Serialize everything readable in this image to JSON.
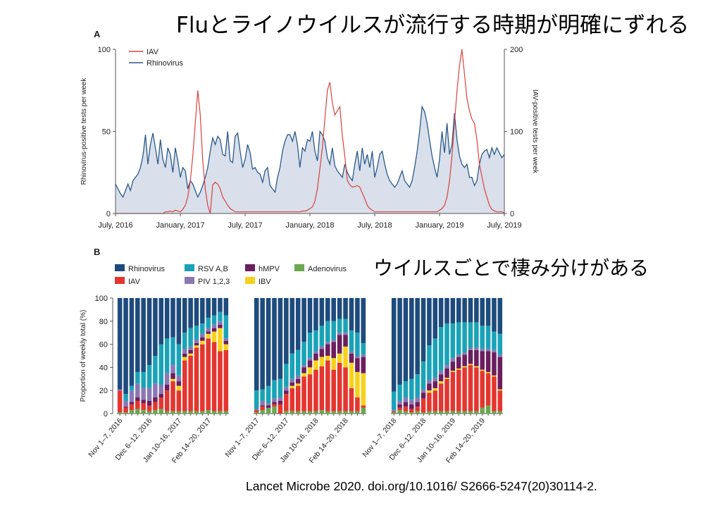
{
  "slide": {
    "title": "Fluとライノウイルスが流行する時期が明確にずれる",
    "subtitle": "ウイルスごとで棲み分けがある",
    "citation": "Lancet Microbe 2020. doi.org/10.1016/ S2666-5247(20)30114-2."
  },
  "colors": {
    "rhinovirus": "#1e4b7d",
    "iav": "#e3362f",
    "rsv": "#1aa3b8",
    "piv": "#8a77b3",
    "hmpv": "#6b1e5e",
    "ibv": "#f7d21c",
    "adenovirus": "#6aa84f",
    "rhino_fill": "#d9dfeb",
    "rhino_line": "#2a5a8a",
    "iav_line": "#d9433b"
  },
  "chart_data": [
    {
      "panel": "A",
      "type": "line",
      "ylabel": "Rhinovirus-positive tests per week",
      "y2label": "IAV-positive tests per week",
      "ylim": [
        0,
        100
      ],
      "y2lim": [
        0,
        200
      ],
      "yticks": [
        "0",
        "50",
        "100"
      ],
      "y2ticks": [
        "0",
        "100",
        "200"
      ],
      "xticks": [
        "July, 2016",
        "January, 2017",
        "July, 2017",
        "January, 2018",
        "July, 2018",
        "January, 2019",
        "July, 2019"
      ],
      "legend": [
        {
          "name": "IAV",
          "color_key": "iav_line"
        },
        {
          "name": "Rhinovirus",
          "color_key": "rhino_line"
        }
      ],
      "legend_position": "top-left",
      "x_weeks": 157,
      "series": [
        {
          "name": "Rhinovirus",
          "axis": "left",
          "fill": true,
          "values": [
            18,
            15,
            12,
            10,
            14,
            18,
            14,
            20,
            22,
            24,
            28,
            35,
            48,
            30,
            42,
            49,
            40,
            30,
            45,
            33,
            28,
            40,
            36,
            25,
            40,
            32,
            22,
            28,
            26,
            15,
            20,
            18,
            14,
            10,
            13,
            17,
            22,
            28,
            38,
            46,
            42,
            47,
            45,
            36,
            35,
            50,
            32,
            31,
            47,
            49,
            38,
            28,
            33,
            42,
            37,
            27,
            28,
            25,
            24,
            19,
            26,
            28,
            17,
            15,
            13,
            22,
            28,
            38,
            44,
            48,
            48,
            44,
            50,
            42,
            28,
            40,
            38,
            45,
            44,
            50,
            38,
            32,
            50,
            48,
            44,
            34,
            30,
            40,
            29,
            26,
            24,
            22,
            30,
            25,
            22,
            20,
            30,
            38,
            26,
            40,
            30,
            36,
            28,
            38,
            22,
            28,
            36,
            38,
            30,
            24,
            20,
            18,
            16,
            18,
            22,
            26,
            20,
            18,
            16,
            20,
            28,
            38,
            50,
            65,
            62,
            55,
            45,
            35,
            28,
            22,
            33,
            50,
            37,
            55,
            36,
            42,
            61,
            45,
            35,
            30,
            28,
            30,
            22,
            22,
            17,
            20,
            30,
            36,
            38,
            39,
            34,
            40,
            36,
            40,
            37,
            34,
            36
          ]
        },
        {
          "name": "IAV",
          "axis": "right",
          "fill": false,
          "values": [
            0,
            0,
            0,
            0,
            0,
            0,
            0,
            0,
            0,
            0,
            0,
            0,
            0,
            0,
            0,
            0,
            0,
            0,
            0,
            0,
            2,
            2,
            3,
            2,
            4,
            3,
            2,
            5,
            10,
            20,
            40,
            70,
            110,
            150,
            120,
            65,
            30,
            10,
            0,
            35,
            38,
            36,
            30,
            20,
            15,
            10,
            6,
            4,
            2,
            2,
            2,
            2,
            2,
            2,
            2,
            2,
            2,
            2,
            2,
            2,
            2,
            2,
            2,
            2,
            2,
            2,
            2,
            2,
            2,
            2,
            2,
            2,
            2,
            2,
            2,
            3,
            3,
            4,
            6,
            8,
            15,
            30,
            55,
            80,
            115,
            150,
            160,
            135,
            120,
            125,
            130,
            95,
            70,
            40,
            35,
            32,
            33,
            34,
            32,
            25,
            18,
            10,
            6,
            4,
            2,
            2,
            2,
            2,
            2,
            2,
            2,
            2,
            2,
            2,
            2,
            2,
            2,
            2,
            2,
            2,
            2,
            2,
            2,
            2,
            2,
            2,
            2,
            2,
            2,
            2,
            4,
            6,
            10,
            20,
            40,
            70,
            110,
            150,
            180,
            200,
            170,
            140,
            125,
            115,
            110,
            90,
            60,
            45,
            30,
            20,
            10,
            5,
            3,
            2,
            2,
            2,
            1
          ]
        }
      ]
    },
    {
      "panel": "B",
      "type": "bar",
      "stacked": true,
      "ylabel": "Proportion of weekly total (%)",
      "ylim": [
        0,
        100
      ],
      "yticks": [
        "0",
        "20",
        "40",
        "60",
        "80",
        "100"
      ],
      "legend_position": "top-left",
      "legend": [
        {
          "name": "Rhinovirus",
          "color_key": "rhinovirus"
        },
        {
          "name": "IAV",
          "color_key": "iav"
        },
        {
          "name": "RSV A,B",
          "color_key": "rsv"
        },
        {
          "name": "PIV 1,2,3",
          "color_key": "piv"
        },
        {
          "name": "hMPV",
          "color_key": "hmpv"
        },
        {
          "name": "IBV",
          "color_key": "ibv"
        },
        {
          "name": "Adenovirus",
          "color_key": "adenovirus"
        }
      ],
      "stack_order": [
        "adenovirus",
        "iav",
        "ibv",
        "hmpv",
        "piv",
        "rsv",
        "rhinovirus"
      ],
      "groups": [
        {
          "xticks": [
            "Nov 1–7, 2016",
            "Dec 6–12, 2016",
            "Jan 10–16, 2017",
            "Feb 14–20, 2017"
          ],
          "weeks": [
            {
              "adenovirus": 1,
              "iav": 19,
              "ibv": 0,
              "hmpv": 0,
              "piv": 1,
              "rsv": 0
            },
            {
              "adenovirus": 1,
              "iav": 4,
              "ibv": 0,
              "hmpv": 1,
              "piv": 5,
              "rsv": 6
            },
            {
              "adenovirus": 3,
              "iav": 5,
              "ibv": 0,
              "hmpv": 2,
              "piv": 10,
              "rsv": 4
            },
            {
              "adenovirus": 4,
              "iav": 7,
              "ibv": 0,
              "hmpv": 3,
              "piv": 12,
              "rsv": 10
            },
            {
              "adenovirus": 3,
              "iav": 6,
              "ibv": 0,
              "hmpv": 3,
              "piv": 10,
              "rsv": 14
            },
            {
              "adenovirus": 2,
              "iav": 5,
              "ibv": 0,
              "hmpv": 4,
              "piv": 11,
              "rsv": 20
            },
            {
              "adenovirus": 3,
              "iav": 7,
              "ibv": 0,
              "hmpv": 4,
              "piv": 12,
              "rsv": 24
            },
            {
              "adenovirus": 4,
              "iav": 10,
              "ibv": 0,
              "hmpv": 3,
              "piv": 8,
              "rsv": 35
            },
            {
              "adenovirus": 2,
              "iav": 18,
              "ibv": 0,
              "hmpv": 5,
              "piv": 10,
              "rsv": 30
            },
            {
              "adenovirus": 2,
              "iav": 26,
              "ibv": 2,
              "hmpv": 5,
              "piv": 7,
              "rsv": 24
            },
            {
              "adenovirus": 2,
              "iav": 18,
              "ibv": 4,
              "hmpv": 4,
              "piv": 5,
              "rsv": 27
            },
            {
              "adenovirus": 2,
              "iav": 44,
              "ibv": 3,
              "hmpv": 3,
              "piv": 4,
              "rsv": 14
            },
            {
              "adenovirus": 2,
              "iav": 48,
              "ibv": 2,
              "hmpv": 3,
              "piv": 3,
              "rsv": 16
            },
            {
              "adenovirus": 2,
              "iav": 55,
              "ibv": 2,
              "hmpv": 2,
              "piv": 3,
              "rsv": 12
            },
            {
              "adenovirus": 2,
              "iav": 58,
              "ibv": 3,
              "hmpv": 3,
              "piv": 3,
              "rsv": 9
            },
            {
              "adenovirus": 3,
              "iav": 62,
              "ibv": 4,
              "hmpv": 2,
              "piv": 3,
              "rsv": 9
            },
            {
              "adenovirus": 2,
              "iav": 60,
              "ibv": 9,
              "hmpv": 3,
              "piv": 3,
              "rsv": 8
            },
            {
              "adenovirus": 2,
              "iav": 52,
              "ibv": 20,
              "hmpv": 3,
              "piv": 3,
              "rsv": 8
            },
            {
              "adenovirus": 2,
              "iav": 53,
              "ibv": 5,
              "hmpv": 3,
              "piv": 2,
              "rsv": 20
            }
          ]
        },
        {
          "xticks": [
            "Nov 1–7, 2017",
            "Dec 6–12, 2017",
            "Jan 10–16, 2018",
            "Feb 14–20, 2018"
          ],
          "weeks": [
            {
              "adenovirus": 1,
              "iav": 2,
              "ibv": 0,
              "hmpv": 0,
              "piv": 1,
              "rsv": 16
            },
            {
              "adenovirus": 3,
              "iav": 3,
              "ibv": 0,
              "hmpv": 1,
              "piv": 4,
              "rsv": 10
            },
            {
              "adenovirus": 5,
              "iav": 0,
              "ibv": 0,
              "hmpv": 2,
              "piv": 2,
              "rsv": 15
            },
            {
              "adenovirus": 6,
              "iav": 2,
              "ibv": 0,
              "hmpv": 2,
              "piv": 3,
              "rsv": 16
            },
            {
              "adenovirus": 0,
              "iav": 8,
              "ibv": 0,
              "hmpv": 3,
              "piv": 3,
              "rsv": 16
            },
            {
              "adenovirus": 2,
              "iav": 15,
              "ibv": 0,
              "hmpv": 3,
              "piv": 3,
              "rsv": 20
            },
            {
              "adenovirus": 2,
              "iav": 20,
              "ibv": 2,
              "hmpv": 3,
              "piv": 3,
              "rsv": 22
            },
            {
              "adenovirus": 2,
              "iav": 22,
              "ibv": 2,
              "hmpv": 4,
              "piv": 3,
              "rsv": 22
            },
            {
              "adenovirus": 2,
              "iav": 30,
              "ibv": 3,
              "hmpv": 5,
              "piv": 2,
              "rsv": 20
            },
            {
              "adenovirus": 2,
              "iav": 32,
              "ibv": 6,
              "hmpv": 6,
              "piv": 2,
              "rsv": 22
            },
            {
              "adenovirus": 2,
              "iav": 36,
              "ibv": 8,
              "hmpv": 6,
              "piv": 2,
              "rsv": 18
            },
            {
              "adenovirus": 3,
              "iav": 38,
              "ibv": 8,
              "hmpv": 7,
              "piv": 2,
              "rsv": 18
            },
            {
              "adenovirus": 2,
              "iav": 44,
              "ibv": 4,
              "hmpv": 10,
              "piv": 2,
              "rsv": 18
            },
            {
              "adenovirus": 2,
              "iav": 36,
              "ibv": 10,
              "hmpv": 14,
              "piv": 2,
              "rsv": 16
            },
            {
              "adenovirus": 2,
              "iav": 42,
              "ibv": 8,
              "hmpv": 16,
              "piv": 2,
              "rsv": 12
            },
            {
              "adenovirus": 2,
              "iav": 38,
              "ibv": 18,
              "hmpv": 10,
              "piv": 2,
              "rsv": 12
            },
            {
              "adenovirus": 2,
              "iav": 20,
              "ibv": 22,
              "hmpv": 8,
              "piv": 2,
              "rsv": 18
            },
            {
              "adenovirus": 2,
              "iav": 12,
              "ibv": 22,
              "hmpv": 12,
              "piv": 2,
              "rsv": 20
            },
            {
              "adenovirus": 5,
              "iav": 2,
              "ibv": 28,
              "hmpv": 14,
              "piv": 2,
              "rsv": 10
            }
          ]
        },
        {
          "xticks": [
            "Nov 1–7, 2018",
            "Dec 6–12, 2018",
            "Jan 10–16, 2019",
            "Feb 14–20, 2019"
          ],
          "weeks": [
            {
              "adenovirus": 1,
              "iav": 1,
              "ibv": 0,
              "hmpv": 0,
              "piv": 1,
              "rsv": 16
            },
            {
              "adenovirus": 3,
              "iav": 2,
              "ibv": 0,
              "hmpv": 3,
              "piv": 3,
              "rsv": 14
            },
            {
              "adenovirus": 2,
              "iav": 4,
              "ibv": 0,
              "hmpv": 4,
              "piv": 4,
              "rsv": 14
            },
            {
              "adenovirus": 1,
              "iav": 3,
              "ibv": 0,
              "hmpv": 4,
              "piv": 4,
              "rsv": 18
            },
            {
              "adenovirus": 2,
              "iav": 4,
              "ibv": 0,
              "hmpv": 4,
              "piv": 4,
              "rsv": 20
            },
            {
              "adenovirus": 1,
              "iav": 12,
              "ibv": 0,
              "hmpv": 5,
              "piv": 3,
              "rsv": 24
            },
            {
              "adenovirus": 2,
              "iav": 16,
              "ibv": 2,
              "hmpv": 6,
              "piv": 3,
              "rsv": 30
            },
            {
              "adenovirus": 2,
              "iav": 18,
              "ibv": 2,
              "hmpv": 6,
              "piv": 3,
              "rsv": 34
            },
            {
              "adenovirus": 2,
              "iav": 24,
              "ibv": 2,
              "hmpv": 6,
              "piv": 3,
              "rsv": 38
            },
            {
              "adenovirus": 2,
              "iav": 28,
              "ibv": 1,
              "hmpv": 8,
              "piv": 3,
              "rsv": 36
            },
            {
              "adenovirus": 2,
              "iav": 34,
              "ibv": 1,
              "hmpv": 8,
              "piv": 3,
              "rsv": 30
            },
            {
              "adenovirus": 2,
              "iav": 36,
              "ibv": 1,
              "hmpv": 10,
              "piv": 2,
              "rsv": 28
            },
            {
              "adenovirus": 2,
              "iav": 38,
              "ibv": 1,
              "hmpv": 10,
              "piv": 2,
              "rsv": 26
            },
            {
              "adenovirus": 2,
              "iav": 40,
              "ibv": 1,
              "hmpv": 12,
              "piv": 2,
              "rsv": 22
            },
            {
              "adenovirus": 2,
              "iav": 38,
              "ibv": 1,
              "hmpv": 14,
              "piv": 2,
              "rsv": 22
            },
            {
              "adenovirus": 5,
              "iav": 32,
              "ibv": 1,
              "hmpv": 16,
              "piv": 2,
              "rsv": 20
            },
            {
              "adenovirus": 7,
              "iav": 28,
              "ibv": 1,
              "hmpv": 18,
              "piv": 2,
              "rsv": 20
            },
            {
              "adenovirus": 2,
              "iav": 30,
              "ibv": 1,
              "hmpv": 20,
              "piv": 2,
              "rsv": 16
            },
            {
              "adenovirus": 2,
              "iav": 18,
              "ibv": 1,
              "hmpv": 28,
              "piv": 2,
              "rsv": 18
            }
          ]
        }
      ]
    }
  ]
}
